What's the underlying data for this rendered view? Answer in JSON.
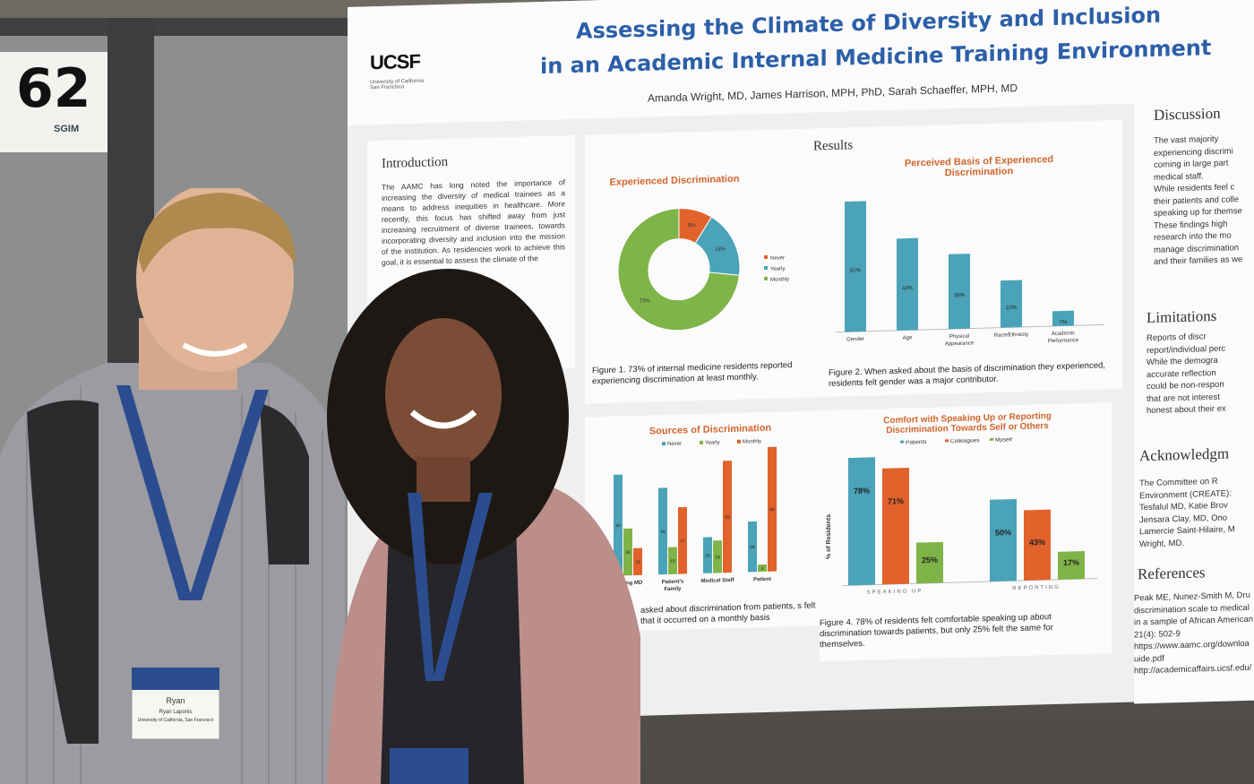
{
  "board": {
    "number": "62",
    "org": "SGIM"
  },
  "poster": {
    "title_line1": "Assessing the Climate of Diversity and Inclusion",
    "title_line2": "in an Academic Internal Medicine Training Environment",
    "authors": "Amanda Wright, MD, James Harrison, MPH, PhD, Sarah Schaeffer, MPH, MD",
    "logo": "UCSF",
    "logo_sub": "University of California San Francisco",
    "sections": {
      "introduction": "Introduction",
      "results": "Results",
      "discussion": "Discussion",
      "limitations": "Limitations",
      "acknowledgments": "Acknowledgm",
      "references": "References"
    },
    "intro_text": "The AAMC has long noted the importance of increasing the diversity of medical trainees as a means to address inequities in healthcare. More recently, this focus has shifted away from just increasing recruitment of diverse trainees, towards incorporating diversity and inclusion into the mission of the institution. As residencies work to achieve this goal, it is essential to assess the climate of the",
    "discussion_text": [
      "The vast majority",
      "experiencing discrimi",
      "coming in large part",
      "medical staff.",
      "While residents feel c",
      "their patients and colle",
      "speaking up for themse",
      "These findings high",
      "research into the mo",
      "manage discrimination",
      "and their families as we"
    ],
    "limitations_text": [
      "Reports of discr",
      "report/individual perc",
      "While the demogra",
      "accurate reflection",
      "could be non-respon",
      "that are not interest",
      "honest about their ex"
    ],
    "ack_text": [
      "The Committee on R",
      "Environment (CREATE):",
      "Tesfalul MD, Katie Brov",
      "Jensara Clay, MD, Ono",
      "Lamercie Saint-Hilaire, M",
      "Wright, MD."
    ],
    "ref_text": [
      "Peak ME, Nunez-Smith M, Dru",
      "discrimination scale to medical",
      "in a sample of African American",
      "21(4): 502-9",
      "https://www.aamc.org/downloa",
      "uide.pdf",
      "http://academicaffairs.ucsf.edu/"
    ],
    "fig1_caption": "Figure 1. 73% of internal medicine residents reported experiencing discrimination at least monthly.",
    "fig2_caption": "Figure 2. When asked about the basis of discrimination they experienced, residents felt gender was a major contributor.",
    "fig3_caption": "asked about discrimination from patients, s felt that it occurred on a monthly basis",
    "fig4_caption": "Figure 4. 78% of residents felt comfortable speaking up about discrimination towards patients, but only 25% felt the same for themselves."
  },
  "badges": {
    "man_name": "Ryan",
    "man_sub": "Ryan Laponis",
    "man_org": "University of California, San Francisco",
    "lanyard": "SGIM"
  },
  "colors": {
    "teal": "#4aa3b8",
    "orange": "#e2622c",
    "green": "#7fb449",
    "blue_title": "#2c5fa8"
  },
  "chart_data": [
    {
      "type": "pie",
      "title": "Experienced Discrimination",
      "categories": [
        "Never",
        "Yearly",
        "Monthly"
      ],
      "values": [
        9,
        18,
        73
      ],
      "labels": [
        "9%",
        "18%",
        "73%"
      ]
    },
    {
      "type": "bar",
      "title": "Perceived Basis of Experienced Discrimination",
      "categories": [
        "Gender",
        "Age",
        "Physical Appearance",
        "Race/Ethnicity",
        "Academic Performance"
      ],
      "values": [
        61,
        43,
        35,
        22,
        7
      ],
      "labels": [
        "61%",
        "43%",
        "35%",
        "22%",
        "7%"
      ],
      "ylim": [
        0,
        65
      ]
    },
    {
      "type": "bar",
      "title": "Sources of Discrimination",
      "categories": [
        "Attending MD",
        "Patient's Family",
        "Medical Staff",
        "Patient"
      ],
      "category_labels": [
        "tending MD",
        "Patient's Family",
        "Medical Staff",
        "Patient"
      ],
      "series": [
        {
          "name": "Never",
          "values": [
            56,
            48,
            20,
            28
          ]
        },
        {
          "name": "Yearly",
          "values": [
            26,
            15,
            18,
            4
          ]
        },
        {
          "name": "Monthly",
          "values": [
            15,
            37,
            62,
            69
          ]
        }
      ],
      "ylim": [
        0,
        72
      ]
    },
    {
      "type": "bar",
      "title": "Comfort with Speaking Up or Reporting Discrimination Towards Self or Others",
      "ylabel": "% of Residents",
      "categories": [
        "SPEAKING UP",
        "REPORTING"
      ],
      "series": [
        {
          "name": "Patients",
          "values": [
            78,
            50
          ]
        },
        {
          "name": "Colleagues",
          "values": [
            71,
            43
          ]
        },
        {
          "name": "Myself",
          "values": [
            25,
            17
          ]
        }
      ],
      "ylim": [
        0,
        85
      ]
    }
  ]
}
